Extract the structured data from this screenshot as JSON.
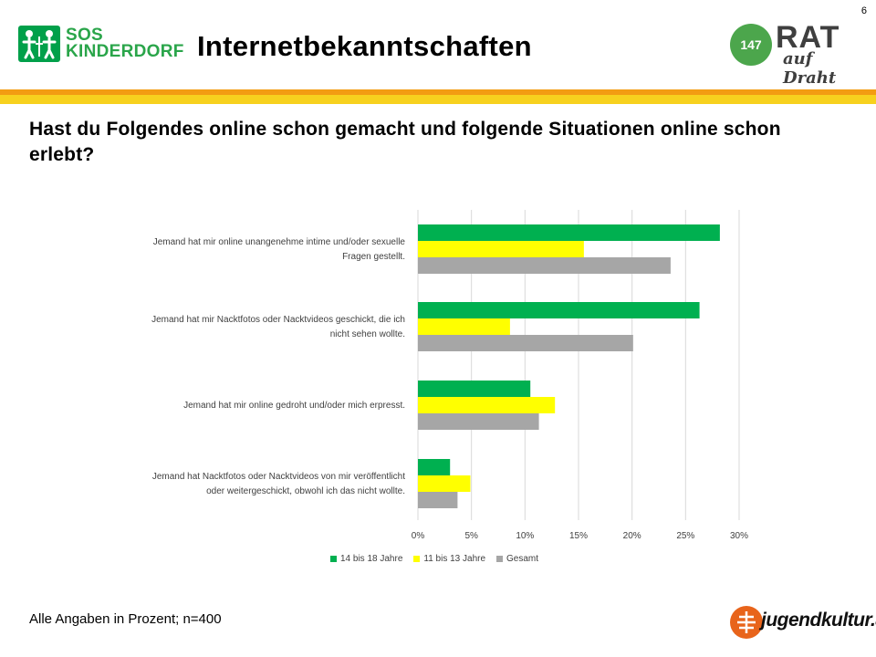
{
  "page_number": "6",
  "header": {
    "title": "Internetbekanntschaften",
    "left_logo": {
      "line1": "SOS",
      "line2": "KINDERDORF"
    },
    "right_logo": {
      "number": "147",
      "word": "RAT",
      "sub": "auf Draht"
    }
  },
  "question": "Hast du Folgendes online schon gemacht und folgende Situationen online schon erlebt?",
  "chart_data": {
    "type": "bar",
    "orientation": "horizontal",
    "categories": [
      [
        "Jemand hat mir online unangenehme intime und/oder sexuelle",
        "Fragen gestellt."
      ],
      [
        "Jemand hat mir Nacktfotos oder Nacktvideos geschickt, die ich",
        "nicht sehen wollte."
      ],
      [
        "Jemand hat mir online gedroht und/oder mich erpresst."
      ],
      [
        "Jemand hat Nacktfotos oder Nacktvideos von mir veröffentlicht",
        "oder weitergeschickt, obwohl ich das nicht wollte."
      ]
    ],
    "series": [
      {
        "name": "14 bis 18 Jahre",
        "color": "#00b050",
        "values": [
          28.2,
          26.3,
          10.5,
          3.0
        ]
      },
      {
        "name": "11 bis 13 Jahre",
        "color": "#ffff00",
        "values": [
          15.5,
          8.6,
          12.8,
          4.9
        ]
      },
      {
        "name": "Gesamt",
        "color": "#a6a6a6",
        "values": [
          23.6,
          20.1,
          11.3,
          3.7
        ]
      }
    ],
    "xlim": [
      0,
      30
    ],
    "ticks": [
      0,
      5,
      10,
      15,
      20,
      25,
      30
    ],
    "tick_labels": [
      "0%",
      "5%",
      "10%",
      "15%",
      "20%",
      "25%",
      "30%"
    ],
    "legend_position": "bottom"
  },
  "footnote": "Alle Angaben in Prozent; n=400",
  "footer_logo": {
    "text": "jugendkultur.at"
  }
}
